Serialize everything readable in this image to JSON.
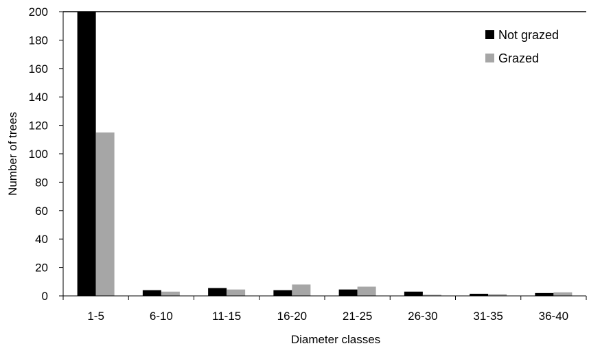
{
  "chart_data": {
    "type": "bar",
    "categories": [
      "1-5",
      "6-10",
      "11-15",
      "16-20",
      "21-25",
      "26-30",
      "31-35",
      "36-40"
    ],
    "series": [
      {
        "name": "Not grazed",
        "color": "#000000",
        "values": [
          200,
          4,
          5.5,
          4,
          4.5,
          3,
          1.5,
          2
        ]
      },
      {
        "name": "Grazed",
        "color": "#a6a6a6",
        "values": [
          115,
          3,
          4.5,
          8,
          6.5,
          0.8,
          1.2,
          2.5
        ]
      }
    ],
    "xlabel": "Diameter classes",
    "ylabel": "Number  of trees",
    "ylim": [
      0,
      200
    ],
    "yticks": [
      0,
      20,
      40,
      60,
      80,
      100,
      120,
      140,
      160,
      180,
      200
    ],
    "grid": false,
    "legend_position": "top-right"
  }
}
